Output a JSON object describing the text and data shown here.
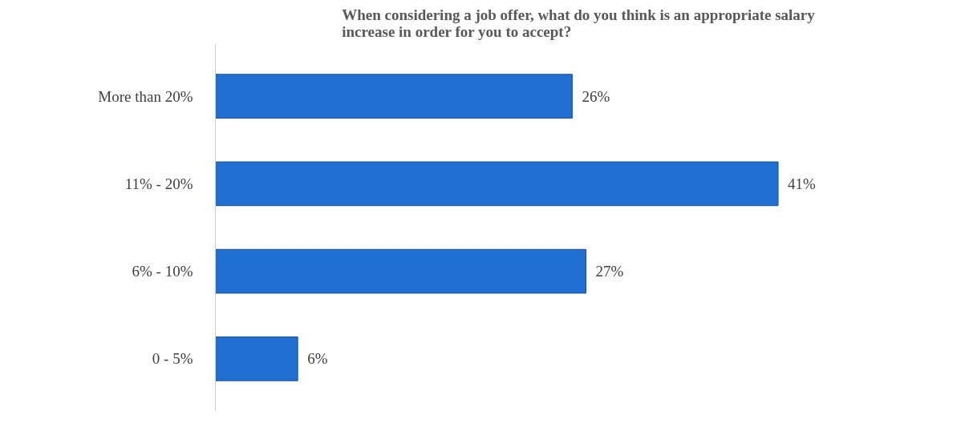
{
  "chart_data": {
    "type": "bar",
    "orientation": "horizontal",
    "title": "When considering a job offer, what do you think is an appropriate salary increase in order for you to accept?",
    "categories": [
      "More than 20%",
      "11% - 20%",
      "6% - 10%",
      "0 - 5%"
    ],
    "values": [
      26,
      41,
      27,
      6
    ],
    "color": "#1f6fd3",
    "data_labels": true,
    "value_labels": [
      "26%",
      "41%",
      "27%",
      "6%"
    ],
    "grid": false
  }
}
